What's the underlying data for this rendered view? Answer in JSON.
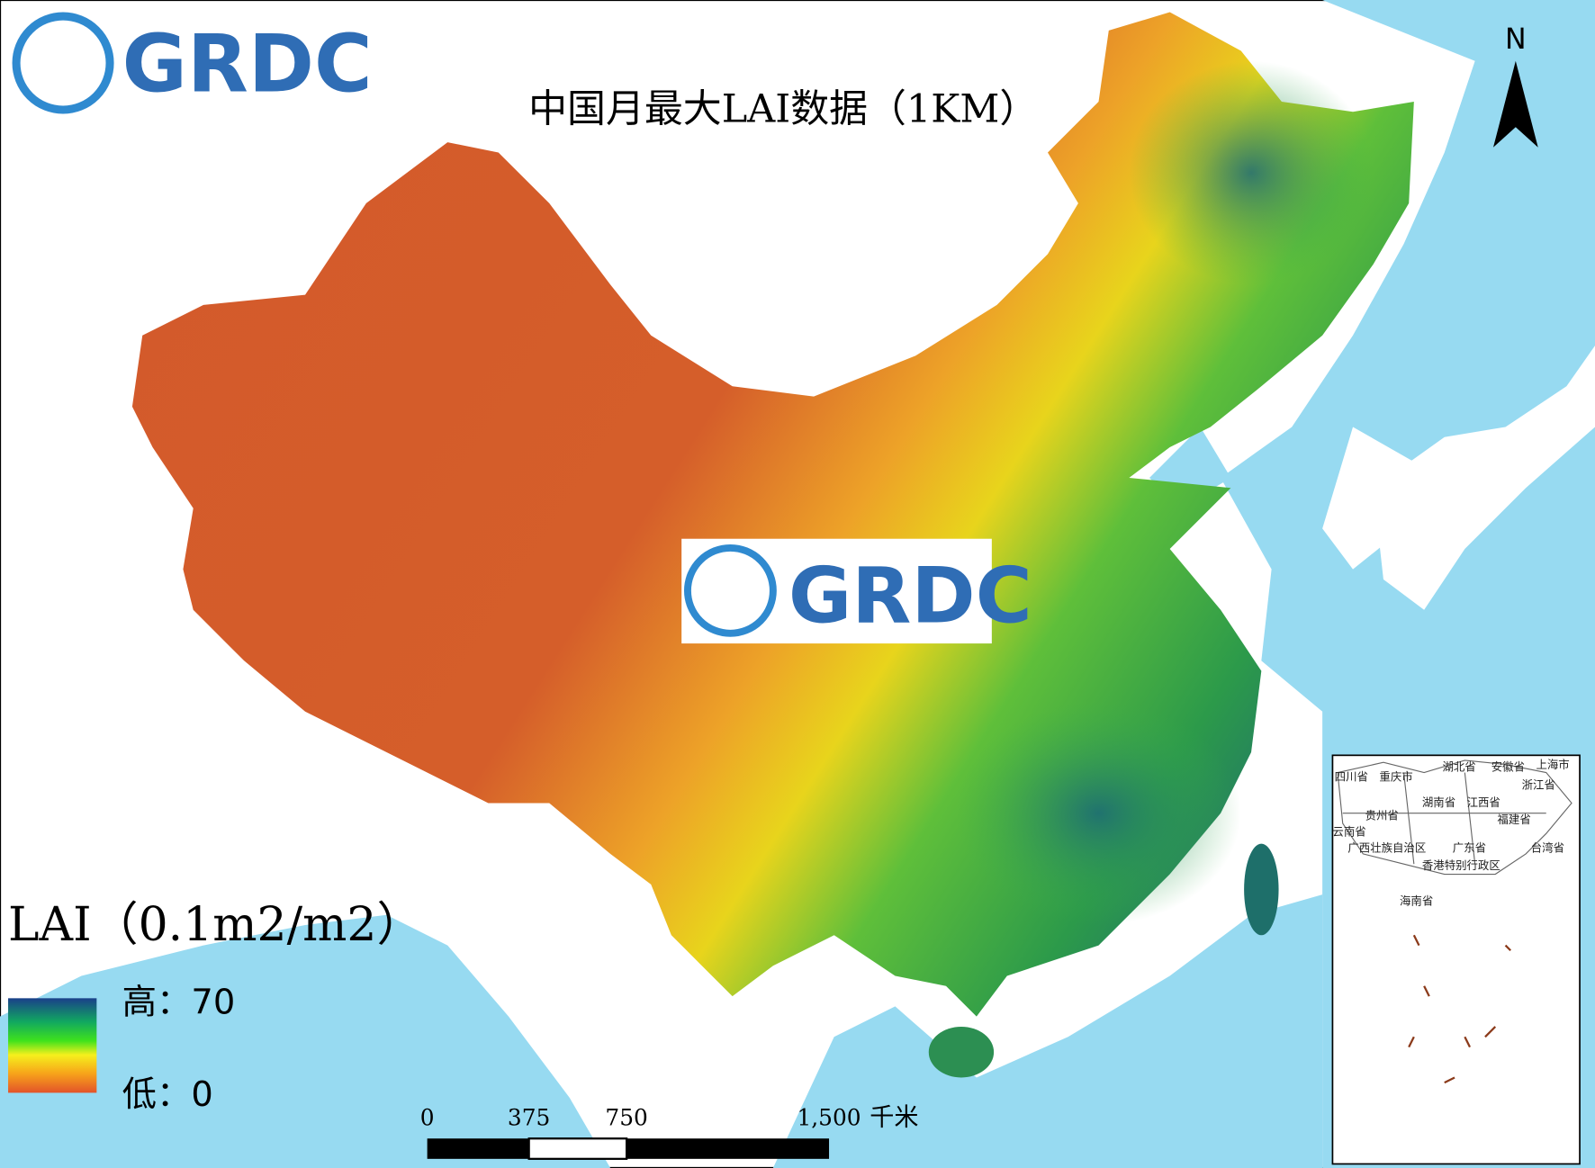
{
  "header": {
    "logo": "GRDC",
    "title": "中国月最大LAI数据（1KM）"
  },
  "watermark": {
    "logo": "GRDC"
  },
  "north_arrow": {
    "label": "N"
  },
  "legend": {
    "title": "LAI（0.1m2/m2）",
    "high": "高：70",
    "low": "低：0"
  },
  "scale_bar": {
    "ticks": [
      "0",
      "375",
      "750",
      "1,500"
    ],
    "unit": "千米"
  },
  "inset": {
    "labels": [
      "四川省",
      "重庆市",
      "湖北省",
      "安徽省",
      "上海市",
      "浙江省",
      "湖南省",
      "江西省",
      "贵州省",
      "福建省",
      "云南省",
      "广西壮族自治区",
      "广东省",
      "台湾省",
      "香港特别行政区",
      "海南省"
    ]
  }
}
